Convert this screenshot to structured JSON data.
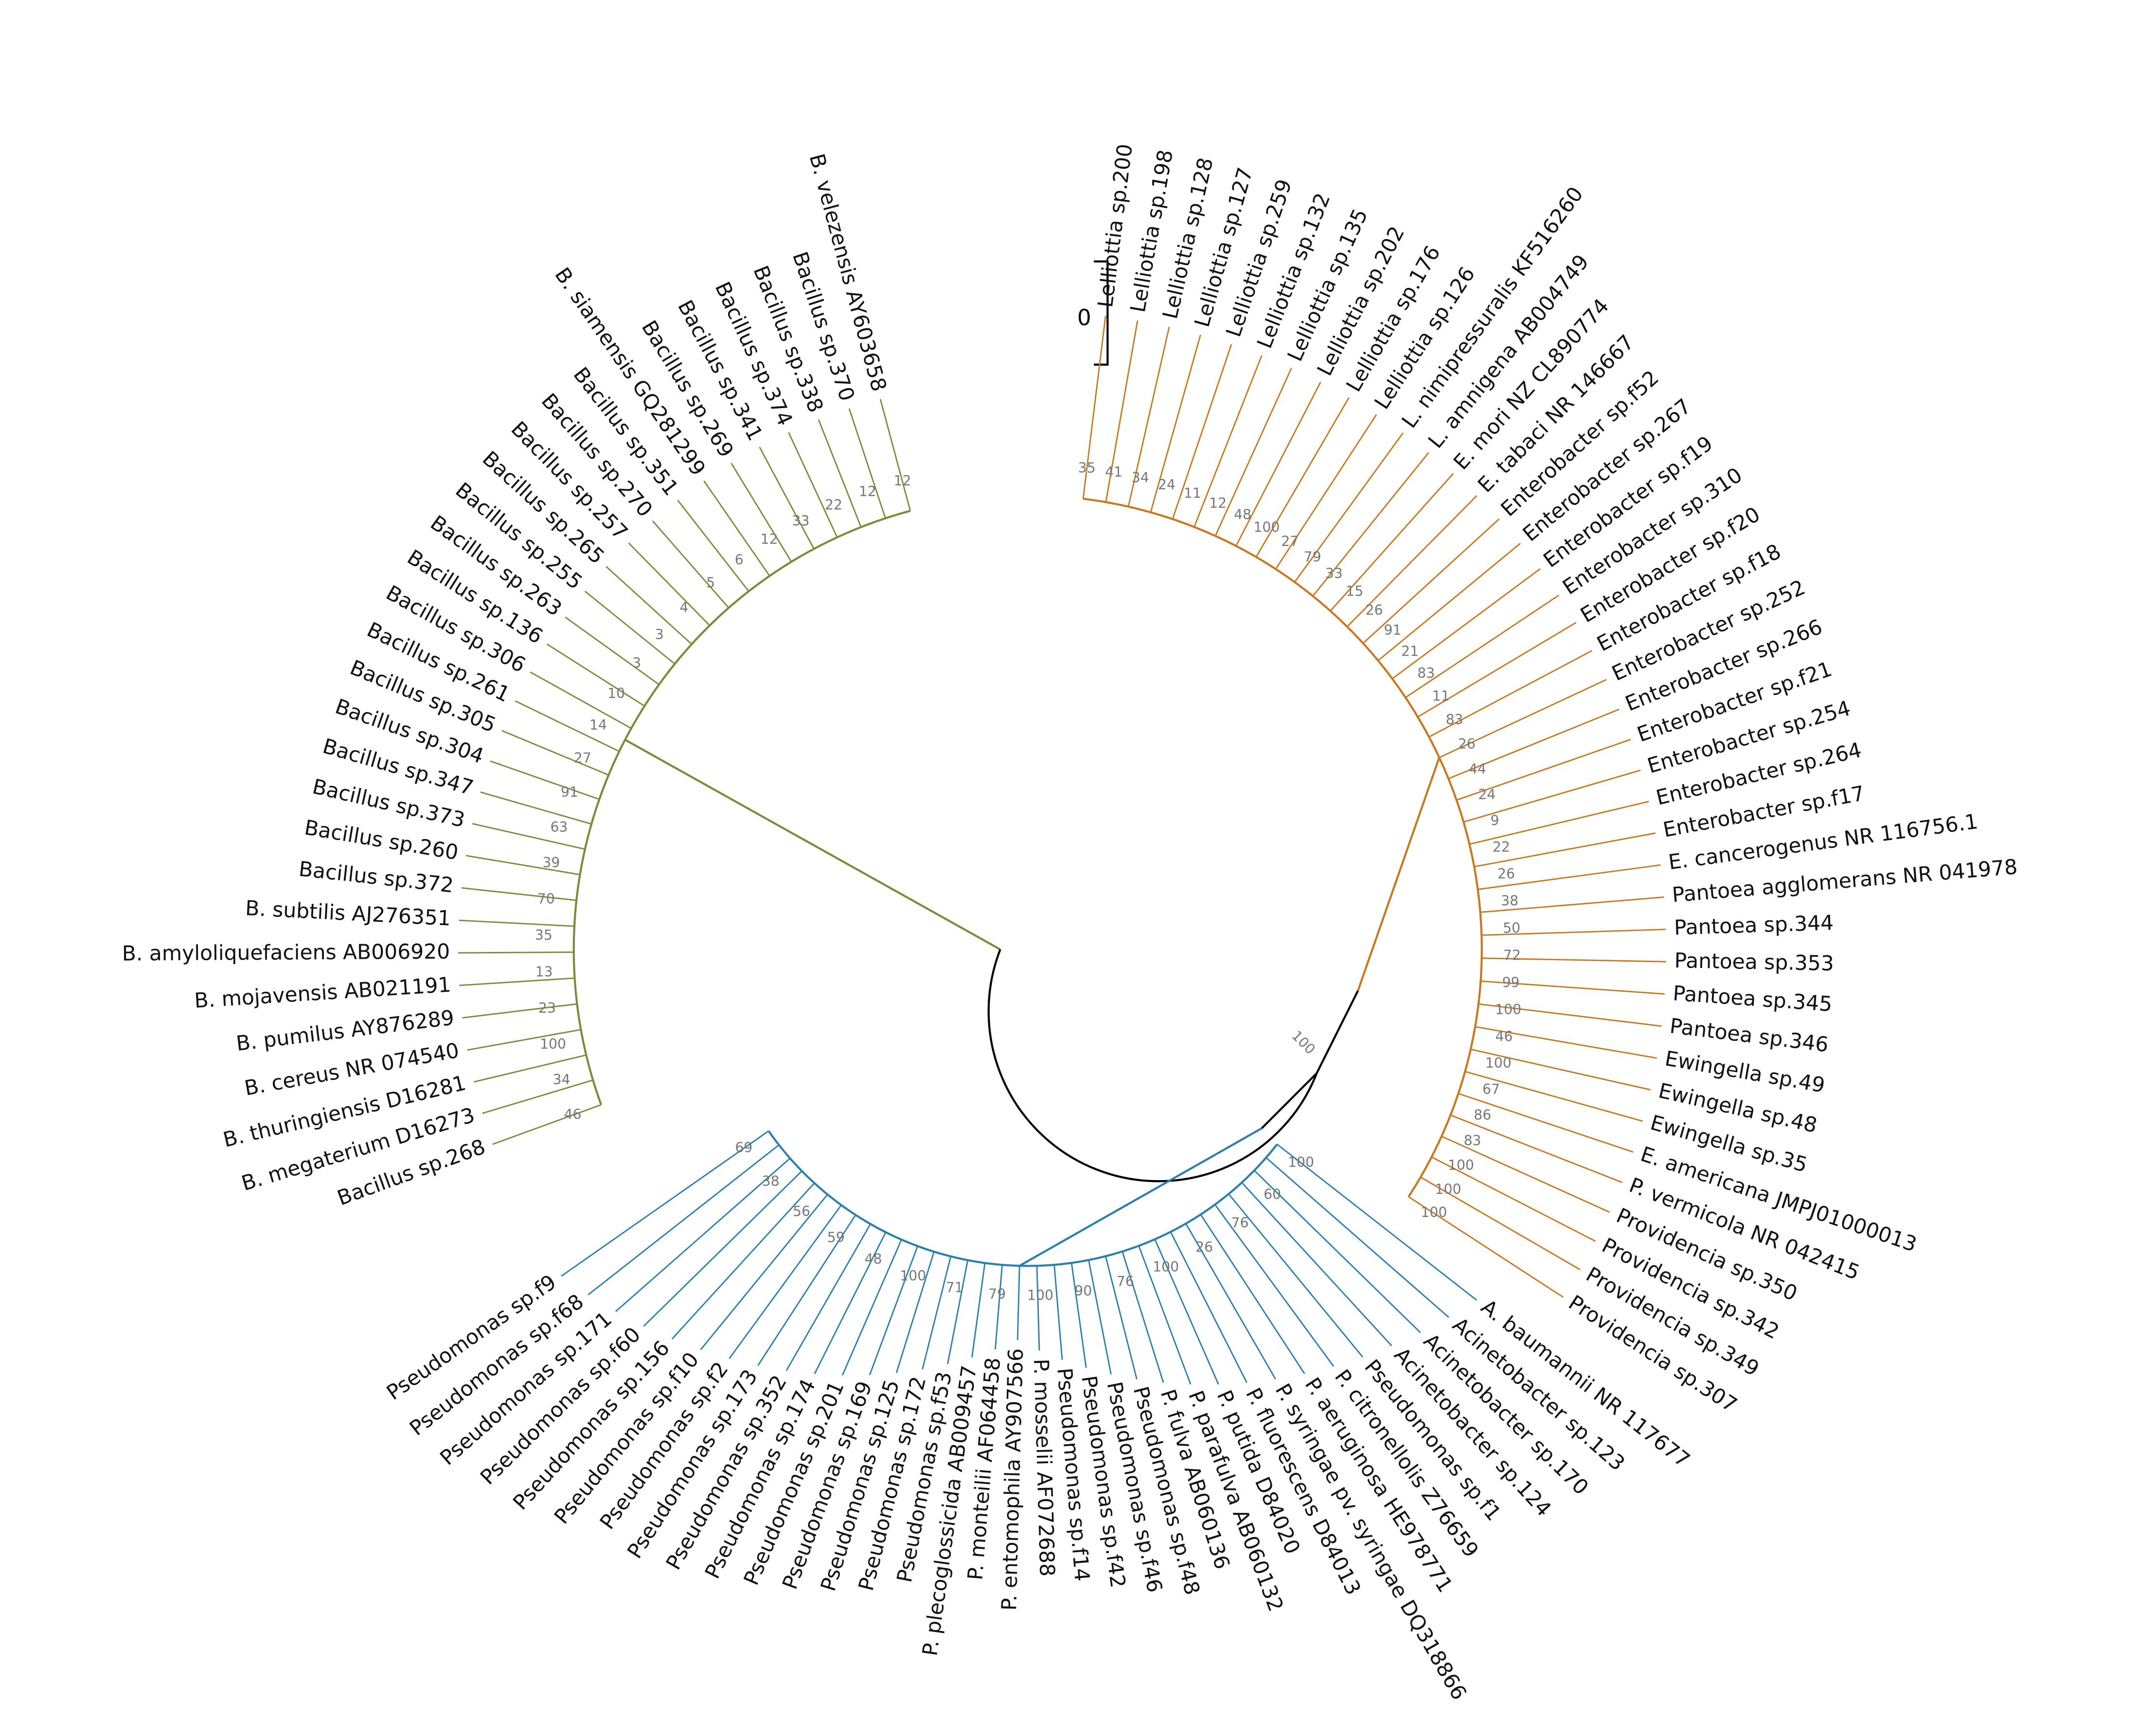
{
  "scale_label": "0",
  "root_bootstrap": 100,
  "groups": [
    {
      "color": "#c8781e",
      "leaves": [
        "Lelliottia sp.200",
        "Lelliottia sp.198",
        "Lelliottia sp.128",
        "Lelliottia sp.127",
        "Lelliottia sp.259",
        "Lelliottia sp.132",
        "Lelliottia sp.135",
        "Lelliottia sp.202",
        "Lelliottia sp.176",
        "Lelliottia sp.126",
        "L. nimipressuralis KF516260",
        "L. amnigena AB004749",
        "E. mori NZ CL890774",
        "E. tabaci NR 146667",
        "Enterobacter sp.f52",
        "Enterobacter sp.267",
        "Enterobacter sp.f19",
        "Enterobacter sp.310",
        "Enterobacter sp.f20",
        "Enterobacter sp.f18",
        "Enterobacter sp.252",
        "Enterobacter sp.266",
        "Enterobacter sp.f21",
        "Enterobacter sp.254",
        "Enterobacter sp.264",
        "Enterobacter sp.f17",
        "E. cancerogenus NR 116756.1",
        "Pantoea agglomerans NR 041978",
        "Pantoea sp.344",
        "Pantoea sp.353",
        "Pantoea sp.345",
        "Pantoea sp.346",
        "Ewingella sp.49",
        "Ewingella sp.48",
        "Ewingella sp.35",
        "E. americana JMPJ01000013",
        "P. vermicola NR 042415",
        "Providencia sp.350",
        "Providencia sp.342",
        "Providencia sp.349",
        "Providencia sp.307"
      ],
      "bootstrap": [
        35,
        41,
        34,
        24,
        11,
        12,
        48,
        100,
        27,
        79,
        33,
        15,
        26,
        91,
        21,
        83,
        11,
        83,
        26,
        44,
        24,
        9,
        22,
        26,
        38,
        50,
        72,
        99,
        100,
        46,
        100,
        67,
        86,
        83,
        100,
        100,
        100
      ]
    },
    {
      "color": "#2a7fb0",
      "leaves": [
        "A. baumannii NR 117677",
        "Acinetobacter sp.123",
        "Acinetobacter sp.170",
        "Acinetobacter sp.124",
        "Pseudomonas sp.f1",
        "P. citronellolis Z76659",
        "P. aeruginosa HE978771",
        "P. syringae pv. syringae DQ318866",
        "P. fluorescens D84013",
        "P. putida D84020",
        "P. parafulva AB060132",
        "P. fulva AB060136",
        "Pseudomonas sp.f48",
        "Pseudomonas sp.f46",
        "Pseudomonas sp.f42",
        "Pseudomonas sp.f14",
        "P. mosselii AF072688",
        "P. entomophila AY907566",
        "P. monteilii AF064458",
        "P. plecoglossicida AB009457",
        "Pseudomonas sp.f53",
        "Pseudomonas sp.172",
        "Pseudomonas sp.125",
        "Pseudomonas sp.169",
        "Pseudomonas sp.201",
        "Pseudomonas sp.174",
        "Pseudomonas sp.352",
        "Pseudomonas sp.173",
        "Pseudomonas sp.f2",
        "Pseudomonas sp.f10",
        "Pseudomonas sp.156",
        "Pseudomonas sp.f60",
        "Pseudomonas sp.171",
        "Pseudomonas sp.f68",
        "Pseudomonas sp.f9"
      ],
      "bootstrap": [
        100,
        60,
        76,
        26,
        100,
        76,
        90,
        100,
        79,
        71,
        100,
        48,
        59,
        56,
        38,
        69
      ]
    },
    {
      "color": "#7a8c3a",
      "leaves": [
        "Bacillus sp.268",
        "B. megaterium D16273",
        "B. thuringiensis D16281",
        "B. cereus NR 074540",
        "B. pumilus AY876289",
        "B. mojavensis AB021191",
        "B. amyloliquefaciens AB006920",
        "B. subtilis AJ276351",
        "Bacillus sp.372",
        "Bacillus sp.260",
        "Bacillus sp.373",
        "Bacillus sp.347",
        "Bacillus sp.304",
        "Bacillus sp.305",
        "Bacillus sp.261",
        "Bacillus sp.306",
        "Bacillus sp.136",
        "Bacillus sp.263",
        "Bacillus sp.255",
        "Bacillus sp.265",
        "Bacillus sp.257",
        "Bacillus sp.270",
        "Bacillus sp.351",
        "B. siamensis GQ281299",
        "Bacillus sp.269",
        "Bacillus sp.341",
        "Bacillus sp.374",
        "Bacillus sp.338",
        "Bacillus sp.370",
        "B. velezensis AY603658"
      ],
      "bootstrap": [
        46,
        34,
        100,
        23,
        13,
        35,
        70,
        39,
        63,
        91,
        27,
        14,
        10,
        3,
        3,
        4,
        5,
        6,
        12,
        33,
        22,
        12,
        12
      ]
    }
  ]
}
